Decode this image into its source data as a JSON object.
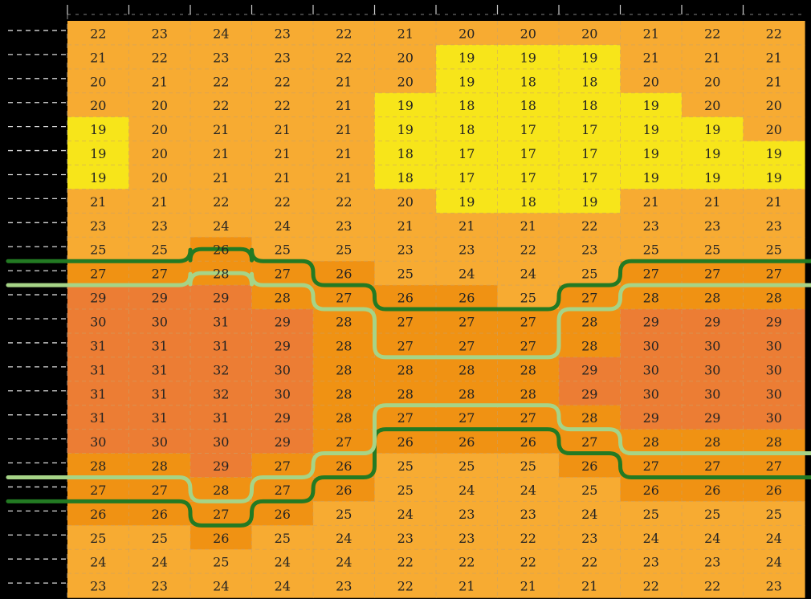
{
  "chart_data": {
    "type": "heatmap",
    "title": "",
    "xlabel": "",
    "ylabel": "",
    "values": [
      [
        22,
        23,
        24,
        23,
        22,
        21,
        20,
        20,
        20,
        21,
        22,
        22
      ],
      [
        21,
        22,
        23,
        23,
        22,
        20,
        19,
        19,
        19,
        21,
        21,
        21
      ],
      [
        20,
        21,
        22,
        22,
        21,
        20,
        19,
        18,
        18,
        20,
        20,
        21
      ],
      [
        20,
        20,
        22,
        22,
        21,
        19,
        18,
        18,
        18,
        19,
        20,
        20
      ],
      [
        19,
        20,
        21,
        21,
        21,
        19,
        18,
        17,
        17,
        19,
        19,
        20
      ],
      [
        19,
        20,
        21,
        21,
        21,
        18,
        17,
        17,
        17,
        19,
        19,
        19
      ],
      [
        19,
        20,
        21,
        21,
        21,
        18,
        17,
        17,
        17,
        19,
        19,
        19
      ],
      [
        21,
        21,
        22,
        22,
        22,
        20,
        19,
        18,
        19,
        21,
        21,
        21
      ],
      [
        23,
        23,
        24,
        24,
        23,
        21,
        21,
        21,
        22,
        23,
        23,
        23
      ],
      [
        25,
        25,
        26,
        25,
        25,
        23,
        23,
        22,
        23,
        25,
        25,
        25
      ],
      [
        27,
        27,
        28,
        27,
        26,
        25,
        24,
        24,
        25,
        27,
        27,
        27
      ],
      [
        29,
        29,
        29,
        28,
        27,
        26,
        26,
        25,
        27,
        28,
        28,
        28
      ],
      [
        30,
        30,
        31,
        29,
        28,
        27,
        27,
        27,
        28,
        29,
        29,
        29
      ],
      [
        31,
        31,
        31,
        29,
        28,
        27,
        27,
        27,
        28,
        30,
        30,
        30
      ],
      [
        31,
        31,
        32,
        30,
        28,
        28,
        28,
        28,
        29,
        30,
        30,
        30
      ],
      [
        31,
        31,
        32,
        30,
        28,
        28,
        28,
        28,
        29,
        30,
        30,
        30
      ],
      [
        31,
        31,
        31,
        29,
        28,
        27,
        27,
        27,
        28,
        29,
        29,
        30
      ],
      [
        30,
        30,
        30,
        29,
        27,
        26,
        26,
        26,
        27,
        28,
        28,
        28
      ],
      [
        28,
        28,
        29,
        27,
        26,
        25,
        25,
        25,
        26,
        27,
        27,
        27
      ],
      [
        27,
        27,
        28,
        27,
        26,
        25,
        24,
        24,
        25,
        26,
        26,
        26
      ],
      [
        26,
        26,
        27,
        26,
        25,
        24,
        23,
        23,
        24,
        25,
        25,
        25
      ],
      [
        25,
        25,
        26,
        25,
        24,
        23,
        23,
        22,
        23,
        24,
        24,
        24
      ],
      [
        24,
        24,
        25,
        24,
        24,
        22,
        22,
        22,
        22,
        23,
        23,
        24
      ],
      [
        23,
        23,
        24,
        24,
        23,
        22,
        21,
        21,
        21,
        22,
        22,
        23
      ]
    ],
    "color_bins": [
      {
        "max": 19,
        "color": "#f7e51a"
      },
      {
        "max": 25,
        "color": "#f7ab32"
      },
      {
        "max": 28,
        "color": "#f09213"
      },
      {
        "max": 99,
        "color": "#ec7d34"
      }
    ],
    "contours": [
      {
        "name": "",
        "color": "#237a23",
        "row_positions": [
          [
            10,
            10,
            9.5,
            10,
            11,
            12,
            12,
            12,
            11,
            10,
            10,
            10
          ],
          [
            20,
            20,
            21,
            20,
            19,
            17,
            17,
            17,
            18,
            19,
            19,
            19
          ]
        ]
      },
      {
        "name": "",
        "color": "#a6d487",
        "row_positions": [
          [
            11,
            11,
            10.5,
            11,
            12,
            14,
            14,
            14,
            12,
            11,
            11,
            11
          ],
          [
            19,
            19,
            20,
            19,
            18,
            16,
            16,
            16,
            17,
            18,
            18,
            18
          ]
        ]
      }
    ]
  }
}
